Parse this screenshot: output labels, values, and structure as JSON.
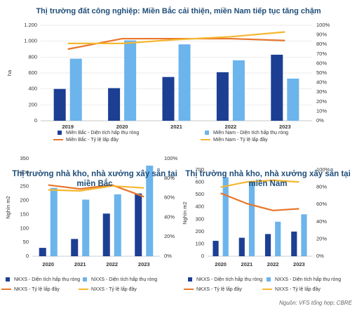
{
  "chart_data": [
    {
      "type": "combo",
      "title": "Thị trường đất công nghiệp: Miền Bắc cải thiện, miền Nam tiếp tục tăng chậm",
      "y_label": "ha",
      "categories": [
        "2019",
        "2020",
        "2021",
        "2022",
        "2023"
      ],
      "ylim": [
        0,
        1200
      ],
      "yticks": [
        0,
        200,
        400,
        600,
        800,
        {
          "value": 1000,
          "label": "1.000"
        },
        {
          "value": 1200,
          "label": "1.200"
        }
      ],
      "y2lim": [
        0,
        100
      ],
      "y2ticks": [
        {
          "value": 0,
          "label": "0%"
        },
        {
          "value": 10,
          "label": "10%"
        },
        {
          "value": 20,
          "label": "20%"
        },
        {
          "value": 30,
          "label": "30%"
        },
        {
          "value": 40,
          "label": "40%"
        },
        {
          "value": 50,
          "label": "50%"
        },
        {
          "value": 60,
          "label": "60%"
        },
        {
          "value": 70,
          "label": "70%"
        },
        {
          "value": 80,
          "label": "80%"
        },
        {
          "value": 90,
          "label": "90%"
        },
        {
          "value": 100,
          "label": "100%"
        }
      ],
      "grid": true,
      "series": [
        {
          "name": "Miền Bắc - Diện tích hấp thụ ròng",
          "type": "bar",
          "color": "#1c3f94",
          "values": [
            400,
            410,
            550,
            610,
            830
          ]
        },
        {
          "name": "Miền Nam - Diện tích hấp thụ ròng",
          "type": "bar",
          "color": "#6cb4ec",
          "values": [
            780,
            1010,
            960,
            760,
            530
          ]
        },
        {
          "name": "Miền Bắc - Tỷ lệ lấp đầy",
          "type": "line",
          "axis": "y2",
          "color": "#e8762c",
          "values": [
            75,
            86,
            86,
            86,
            84
          ]
        },
        {
          "name": "Miền Nam - Tỷ lệ lấp đầy",
          "type": "line",
          "axis": "y2",
          "color": "#f5b731",
          "values": [
            81,
            81,
            85,
            88,
            93
          ]
        }
      ]
    },
    {
      "type": "combo",
      "title": "Thị trường nhà kho, nhà xưởng xây sẵn tại miền Bắc",
      "y_label": "Nghìn m2",
      "categories": [
        "2020",
        "2021",
        "2022",
        "2023"
      ],
      "ylim": [
        0,
        350
      ],
      "yticks": [
        0,
        50,
        100,
        150,
        200,
        250,
        300,
        350
      ],
      "y2lim": [
        0,
        100
      ],
      "y2ticks": [
        {
          "value": 0,
          "label": "0%"
        },
        {
          "value": 20,
          "label": "20%"
        },
        {
          "value": 40,
          "label": "40%"
        },
        {
          "value": 60,
          "label": "60%"
        },
        {
          "value": 80,
          "label": "80%"
        },
        {
          "value": 100,
          "label": "100%"
        }
      ],
      "grid": false,
      "series": [
        {
          "name": "NKXS - Diện tích hấp thụ ròng",
          "type": "bar",
          "color": "#1c3f94",
          "values": [
            30,
            62,
            153,
            225
          ]
        },
        {
          "name": "NXXS - Diện tích hấp thụ ròng",
          "type": "bar",
          "color": "#6cb4ec",
          "values": [
            245,
            203,
            222,
            325
          ]
        },
        {
          "name": "NKXS - Tỷ lệ lấp đầy",
          "type": "line",
          "axis": "y2",
          "color": "#e8762c",
          "values": [
            73,
            69,
            73,
            61
          ]
        },
        {
          "name": "NXXS - Tỷ lệ lấp đầy",
          "type": "line",
          "axis": "y2",
          "color": "#f5b731",
          "values": [
            68,
            67,
            72,
            70
          ]
        }
      ]
    },
    {
      "type": "combo",
      "title": "Thị trường nhà kho, nhà xưởng xây sẵn tại miền Nam",
      "y_label": "Nghìn m2",
      "categories": [
        "2020",
        "2021",
        "2022",
        "2023"
      ],
      "ylim": [
        0,
        700
      ],
      "yticks": [
        0,
        100,
        200,
        300,
        400,
        500,
        600,
        700
      ],
      "y2lim": [
        0,
        100
      ],
      "y2ticks": [
        {
          "value": 0,
          "label": "0%"
        },
        {
          "value": 20,
          "label": "20%"
        },
        {
          "value": 40,
          "label": "40%"
        },
        {
          "value": 60,
          "label": "60%"
        },
        {
          "value": 80,
          "label": "80%"
        },
        {
          "value": 100,
          "label": "100%"
        }
      ],
      "grid": false,
      "series": [
        {
          "name": "NKXS - Diện tích hấp thụ ròng",
          "type": "bar",
          "color": "#1c3f94",
          "values": [
            125,
            150,
            180,
            200
          ]
        },
        {
          "name": "NXXS - Diện tích hấp thụ ròng",
          "type": "bar",
          "color": "#6cb4ec",
          "values": [
            640,
            610,
            280,
            340
          ]
        },
        {
          "name": "NKXS - Tỷ lệ lấp đầy",
          "type": "line",
          "axis": "y2",
          "color": "#e8762c",
          "values": [
            73,
            61,
            53,
            55
          ]
        },
        {
          "name": "NXXS - Tỷ lệ lấp đầy",
          "type": "line",
          "axis": "y2",
          "color": "#f5b731",
          "values": [
            80,
            86,
            88,
            86
          ]
        }
      ]
    }
  ],
  "source": "Nguồn: VFS tổng hợp; CBRE"
}
